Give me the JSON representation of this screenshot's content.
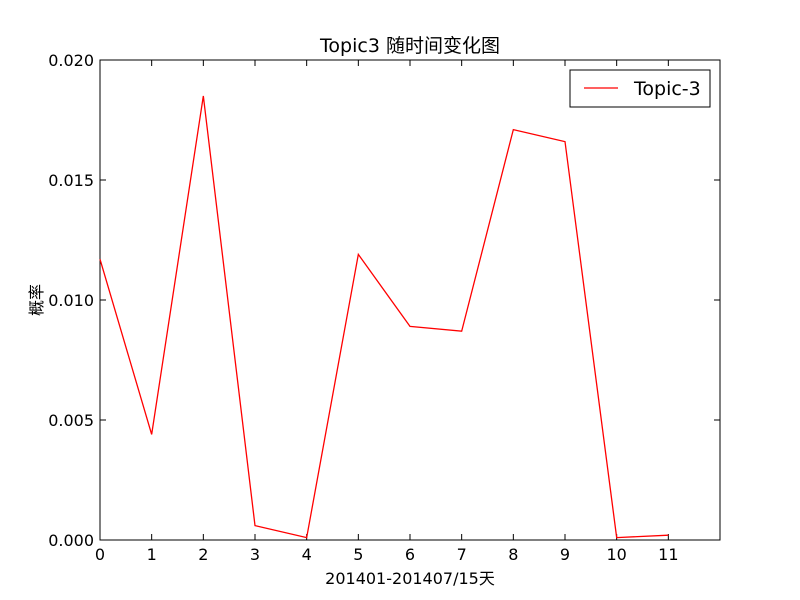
{
  "colors": {
    "series": "#ff0000",
    "axes": "#000000",
    "background": "#ffffff"
  },
  "chart_data": {
    "type": "line",
    "title": "Topic3 随时间变化图",
    "xlabel": "201401-201407/15天",
    "ylabel": "概率",
    "xlim": [
      0,
      12
    ],
    "ylim": [
      0.0,
      0.02
    ],
    "x_ticks": [
      0,
      1,
      2,
      3,
      4,
      5,
      6,
      7,
      8,
      9,
      10,
      11
    ],
    "x_tick_labels": [
      "0",
      "1",
      "2",
      "3",
      "4",
      "5",
      "6",
      "7",
      "8",
      "9",
      "10",
      "11"
    ],
    "y_ticks": [
      0.0,
      0.005,
      0.01,
      0.015,
      0.02
    ],
    "y_tick_labels": [
      "0.000",
      "0.005",
      "0.010",
      "0.015",
      "0.020"
    ],
    "grid": false,
    "legend_position": "top-right",
    "series": [
      {
        "name": "Topic-3",
        "color": "#ff0000",
        "x": [
          0,
          1,
          2,
          3,
          4,
          5,
          6,
          7,
          8,
          9,
          10,
          11
        ],
        "y": [
          0.0117,
          0.0044,
          0.0185,
          0.0006,
          0.0001,
          0.0119,
          0.0089,
          0.0087,
          0.0171,
          0.0166,
          0.0001,
          0.0002
        ]
      }
    ]
  }
}
